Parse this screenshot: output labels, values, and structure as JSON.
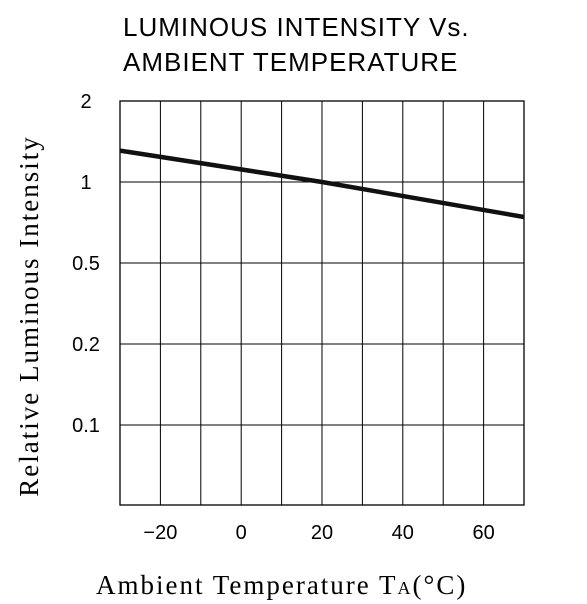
{
  "chart_data": {
    "type": "line",
    "title_lines": [
      "LUMINOUS  INTENSITY  Vs.",
      "AMBIENT  TEMPERATURE"
    ],
    "xlabel": "Ambient  Temperature",
    "xlabel_symbol": "T",
    "xlabel_symbol_sub": "A",
    "xlabel_unit": "(°C)",
    "ylabel": "Relative  Luminous  Intensity",
    "xlim": [
      -30,
      70
    ],
    "x_ticks": [
      -20,
      0,
      20,
      40,
      60
    ],
    "x_tick_labels": [
      "−20",
      "0",
      "20",
      "40",
      "60"
    ],
    "y_scale": "log",
    "y_tick_labels": [
      "2",
      "1",
      "0.5",
      "0.2",
      "0.1"
    ],
    "grid": true,
    "series": [
      {
        "x": [
          -30,
          20,
          70
        ],
        "y": [
          1.25,
          1.0,
          0.78
        ]
      }
    ]
  }
}
